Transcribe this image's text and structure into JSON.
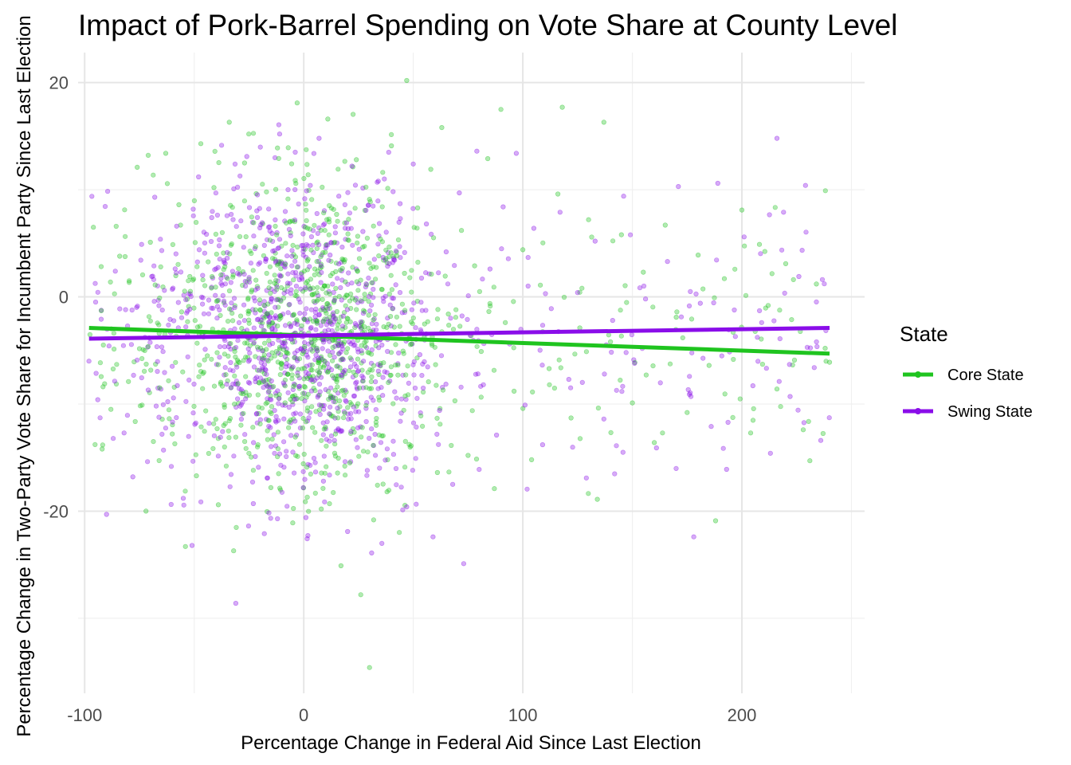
{
  "chart_data": {
    "type": "scatter",
    "title": "Impact of Pork-Barrel Spending on Vote Share at County Level",
    "xlabel": "Percentage Change in Federal Aid Since Last Election",
    "ylabel": "Percentage Change in Two-Party Vote Share for Incumbent Party Since Last Election",
    "xlim": [
      -103,
      256
    ],
    "ylim": [
      -37,
      22.8
    ],
    "x_ticks": [
      -100,
      0,
      100,
      200
    ],
    "x_tick_labels": [
      "-100",
      "0",
      "100",
      "200"
    ],
    "y_ticks": [
      -20,
      0,
      20
    ],
    "y_tick_labels": [
      "-20",
      "0",
      "20"
    ],
    "x_minor_grid": [
      -50,
      50,
      150,
      250
    ],
    "y_minor_grid": [
      -30,
      -10,
      10
    ],
    "grid": true,
    "legend": {
      "title": "State",
      "placement": "right",
      "entries": [
        "Core State",
        "Swing State"
      ]
    },
    "series": [
      {
        "name": "Core State",
        "color": "#1fc41f",
        "point_alpha": 0.35,
        "fit_line": {
          "x": [
            -98,
            240
          ],
          "y": [
            -2.9,
            -5.3
          ]
        },
        "points": [
          [
            -96,
            6.5
          ],
          [
            -92,
            -14.2
          ],
          [
            -88,
            -10.5
          ],
          [
            -84,
            3.8
          ],
          [
            -80,
            -7.9
          ],
          [
            -76,
            12.1
          ],
          [
            -72,
            -20
          ],
          [
            -70,
            5.1
          ],
          [
            -66,
            -3.4
          ],
          [
            -63,
            13.4
          ],
          [
            -60,
            -12.8
          ],
          [
            -57,
            8.6
          ],
          [
            -54,
            -23.3
          ],
          [
            -52,
            1.9
          ],
          [
            -49,
            -16.7
          ],
          [
            -47,
            14.3
          ],
          [
            -44,
            -5.5
          ],
          [
            -41,
            10.2
          ],
          [
            -39,
            -19.4
          ],
          [
            -36,
            2.8
          ],
          [
            -34,
            16.3
          ],
          [
            -32,
            -23.7
          ],
          [
            -30,
            -8.1
          ],
          [
            -27,
            12.5
          ],
          [
            -25,
            -14.6
          ],
          [
            -22,
            4.7
          ],
          [
            -20,
            -1.2
          ],
          [
            -17,
            9.8
          ],
          [
            -15,
            -17.8
          ],
          [
            -12,
            13.9
          ],
          [
            -10,
            -6.3
          ],
          [
            -8,
            6.9
          ],
          [
            -5,
            -21.1
          ],
          [
            -3,
            18.1
          ],
          [
            -1,
            -2.7
          ],
          [
            2,
            11.4
          ],
          [
            4,
            -12.2
          ],
          [
            6,
            3.3
          ],
          [
            8,
            -19.8
          ],
          [
            11,
            16.6
          ],
          [
            13,
            -9.4
          ],
          [
            15,
            7.7
          ],
          [
            17,
            -25.1
          ],
          [
            19,
            1.4
          ],
          [
            21,
            -15.5
          ],
          [
            24,
            12.8
          ],
          [
            26,
            -27.8
          ],
          [
            28,
            -4.6
          ],
          [
            30,
            9.1
          ],
          [
            30,
            -34.6
          ],
          [
            33,
            -11.7
          ],
          [
            35,
            5.4
          ],
          [
            38,
            -18.2
          ],
          [
            40,
            14.1
          ],
          [
            43,
            -7.3
          ],
          [
            46,
            2.2
          ],
          [
            47,
            20.2
          ],
          [
            49,
            -13.9
          ],
          [
            52,
            8.3
          ],
          [
            55,
            -3.8
          ],
          [
            58,
            11.9
          ],
          [
            61,
            -16.4
          ],
          [
            63,
            15.8
          ],
          [
            66,
            -1.6
          ],
          [
            69,
            -9.7
          ],
          [
            72,
            6.2
          ],
          [
            75,
            -14.8
          ],
          [
            78,
            2.9
          ],
          [
            81,
            -5.1
          ],
          [
            84,
            12.9
          ],
          [
            87,
            -17.9
          ],
          [
            90,
            17.5
          ],
          [
            92,
            -2.4
          ],
          [
            96,
            -8.8
          ],
          [
            100,
            4.4
          ],
          [
            104,
            -15.2
          ],
          [
            108,
            1.1
          ],
          [
            112,
            -6.7
          ],
          [
            116,
            9.6
          ],
          [
            118,
            17.7
          ],
          [
            122,
            -11.3
          ],
          [
            126,
            -2.9
          ],
          [
            130,
            7.2
          ],
          [
            134,
            -18.9
          ],
          [
            137,
            16.3
          ],
          [
            140,
            -4.2
          ],
          [
            145,
            5.8
          ],
          [
            150,
            -9.9
          ],
          [
            155,
            2.3
          ],
          [
            160,
            -13.6
          ],
          [
            165,
            6.7
          ],
          [
            170,
            -1.9
          ],
          [
            175,
            -10.8
          ],
          [
            180,
            3.9
          ],
          [
            185,
            -6.4
          ],
          [
            188,
            -20.9
          ],
          [
            192,
            1.7
          ],
          [
            196,
            -3.3
          ],
          [
            200,
            8.1
          ],
          [
            204,
            -12.7
          ],
          [
            208,
            4.9
          ],
          [
            212,
            -0.8
          ],
          [
            216,
            -8.6
          ],
          [
            220,
            3.1
          ],
          [
            224,
            -5.9
          ],
          [
            228,
            -12.4
          ],
          [
            231,
            -15.3
          ],
          [
            234,
            1.2
          ],
          [
            238,
            -4.8
          ],
          [
            240,
            -6.1
          ]
        ]
      },
      {
        "name": "Swing State",
        "color": "#8a0de9",
        "point_alpha": 0.35,
        "fit_line": {
          "x": [
            -98,
            240
          ],
          "y": [
            -3.9,
            -2.9
          ]
        },
        "points": [
          [
            -94,
            -9.6
          ],
          [
            -90,
            -20.3
          ],
          [
            -86,
            2.4
          ],
          [
            -82,
            -12.7
          ],
          [
            -78,
            -16.8
          ],
          [
            -74,
            4.9
          ],
          [
            -71,
            -8.7
          ],
          [
            -68,
            9.3
          ],
          [
            -64,
            -14.3
          ],
          [
            -61,
            -2.1
          ],
          [
            -58,
            6.6
          ],
          [
            -55,
            -18.8
          ],
          [
            -51,
            -23.2
          ],
          [
            -48,
            11.2
          ],
          [
            -45,
            -4.9
          ],
          [
            -42,
            7.4
          ],
          [
            -38,
            -13.1
          ],
          [
            -35,
            3.6
          ],
          [
            -31,
            -28.6
          ],
          [
            -29,
            -10.2
          ],
          [
            -26,
            13.1
          ],
          [
            -23,
            -19.3
          ],
          [
            -21,
            0.8
          ],
          [
            -18,
            -22.1
          ],
          [
            -16,
            8.2
          ],
          [
            -13,
            -3.1
          ],
          [
            -11,
            15.2
          ],
          [
            -9,
            -15.9
          ],
          [
            -6,
            5.7
          ],
          [
            -4,
            -11.6
          ],
          [
            -2,
            1.6
          ],
          [
            1,
            -20.6
          ],
          [
            3,
            10.4
          ],
          [
            5,
            -7.8
          ],
          [
            7,
            14.8
          ],
          [
            9,
            -17.2
          ],
          [
            12,
            3.9
          ],
          [
            14,
            -13.4
          ],
          [
            16,
            9.4
          ],
          [
            18,
            -1.8
          ],
          [
            20,
            -21.9
          ],
          [
            22,
            12.2
          ],
          [
            25,
            -6.9
          ],
          [
            27,
            6.1
          ],
          [
            29,
            -16.2
          ],
          [
            31,
            -23.9
          ],
          [
            34,
            10.8
          ],
          [
            36,
            -9.2
          ],
          [
            39,
            3.1
          ],
          [
            41,
            -14.7
          ],
          [
            44,
            8.7
          ],
          [
            47,
            -19.6
          ],
          [
            50,
            12.4
          ],
          [
            53,
            -5.4
          ],
          [
            56,
            6.8
          ],
          [
            59,
            -22.4
          ],
          [
            62,
            -10.6
          ],
          [
            65,
            4.2
          ],
          [
            68,
            -17.5
          ],
          [
            71,
            9.7
          ],
          [
            73,
            -24.9
          ],
          [
            76,
            -3.6
          ],
          [
            79,
            13.6
          ],
          [
            82,
            -8.2
          ],
          [
            85,
            2.6
          ],
          [
            88,
            -12.9
          ],
          [
            91,
            8.4
          ],
          [
            94,
            -4.4
          ],
          [
            97,
            13.4
          ],
          [
            101,
            -10.1
          ],
          [
            105,
            6.4
          ],
          [
            109,
            -13.8
          ],
          [
            113,
            -1.1
          ],
          [
            117,
            7.9
          ],
          [
            121,
            -7.7
          ],
          [
            125,
            0.4
          ],
          [
            129,
            -16.9
          ],
          [
            133,
            5.2
          ],
          [
            137,
            -11.4
          ],
          [
            141,
            -2.2
          ],
          [
            146,
            9.4
          ],
          [
            151,
            -6.2
          ],
          [
            156,
            -0.2
          ],
          [
            161,
            -14.1
          ],
          [
            166,
            3.3
          ],
          [
            171,
            10.3
          ],
          [
            176,
            -9.1
          ],
          [
            178,
            -22.4
          ],
          [
            181,
            -0.6
          ],
          [
            186,
            -12.1
          ],
          [
            189,
            10.6
          ],
          [
            193,
            -16.1
          ],
          [
            197,
            -3.7
          ],
          [
            201,
            5.6
          ],
          [
            205,
            -8.3
          ],
          [
            209,
            -2.4
          ],
          [
            213,
            -14.6
          ],
          [
            216,
            14.8
          ],
          [
            219,
            7.9
          ],
          [
            222,
            -9.3
          ],
          [
            226,
            1.9
          ],
          [
            229,
            10.4
          ],
          [
            233,
            -6.6
          ],
          [
            236,
            -13.4
          ]
        ]
      }
    ]
  }
}
